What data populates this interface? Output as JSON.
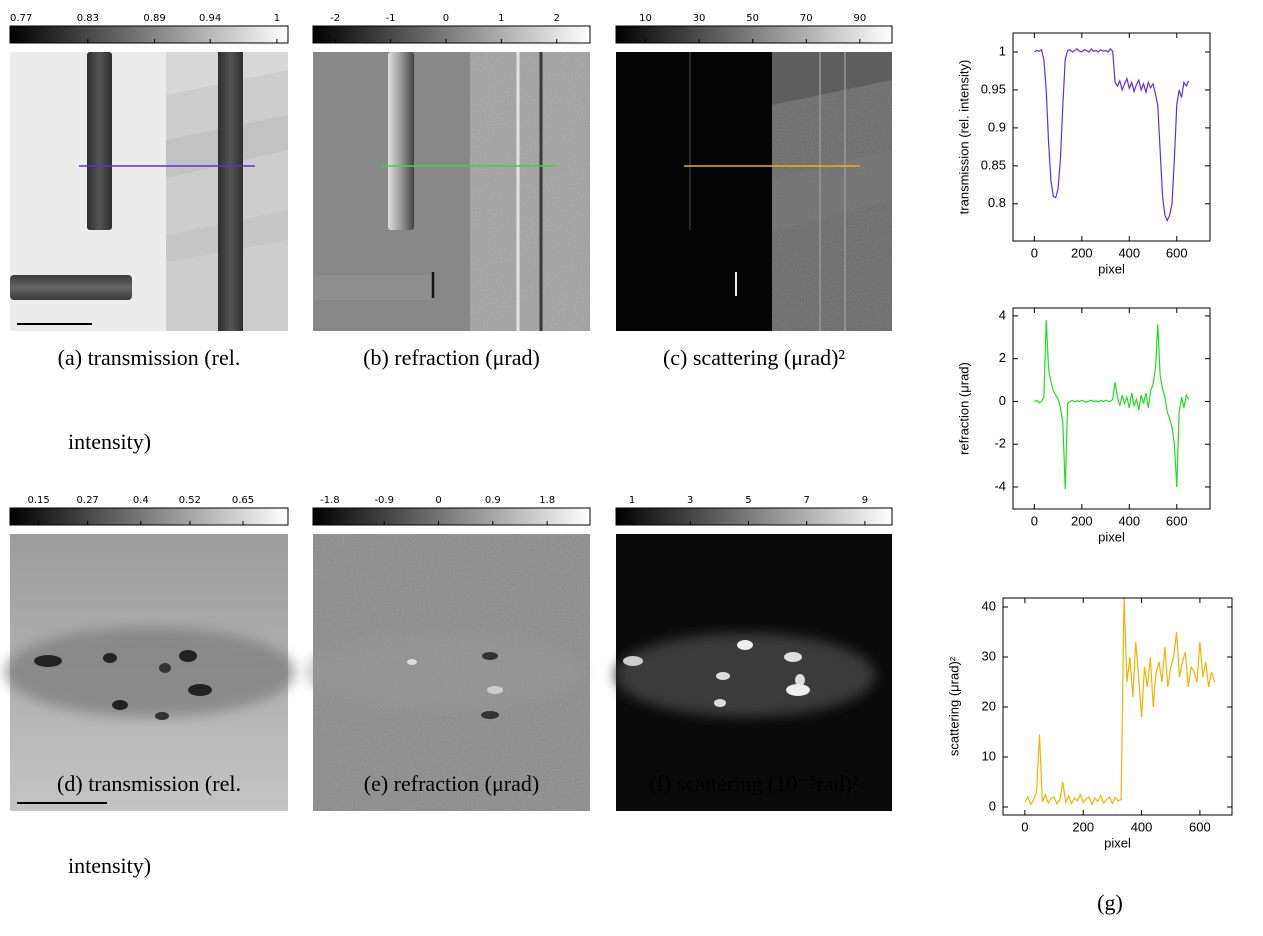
{
  "panels": [
    {
      "colorbar": {
        "lim": [
          0.76,
          1.01
        ],
        "ticks": [
          0.77,
          0.83,
          0.89,
          0.94,
          1
        ]
      },
      "caption": [
        "(a) transmission (rel.",
        "intensity)"
      ]
    },
    {
      "colorbar": {
        "lim": [
          -2.4,
          2.6
        ],
        "ticks": [
          -2,
          -1,
          0,
          1,
          2
        ]
      },
      "caption": [
        "(b) refraction (μrad)"
      ]
    },
    {
      "colorbar": {
        "lim": [
          -1,
          102
        ],
        "ticks": [
          10,
          30,
          50,
          70,
          90
        ]
      },
      "caption": [
        "(c) scattering (μrad)²"
      ]
    },
    {
      "colorbar": {
        "lim": [
          0.08,
          0.76
        ],
        "ticks": [
          0.15,
          0.27,
          0.4,
          0.52,
          0.65
        ]
      },
      "caption": [
        "(d) transmission (rel.",
        "intensity)"
      ]
    },
    {
      "colorbar": {
        "lim": [
          -2.08,
          2.51
        ],
        "ticks": [
          -1.8,
          -0.9,
          0,
          0.9,
          1.8
        ]
      },
      "caption": [
        "(e) refraction (μrad)"
      ]
    },
    {
      "colorbar": {
        "lim": [
          0.45,
          9.93
        ],
        "ticks": [
          1,
          3,
          5,
          7,
          9
        ]
      },
      "caption": [
        "(f) scattering (10⁻⁵rad)²"
      ]
    }
  ],
  "panel_g_caption": "(g)",
  "chart_data": [
    {
      "type": "line",
      "xlabel": "pixel",
      "ylabel": "transmission (rel. intensity)",
      "color": "#5f2fe6",
      "xlim": [
        -90,
        740
      ],
      "ylim": [
        0.751,
        1.025
      ],
      "xticks": [
        0,
        200,
        400,
        600
      ],
      "yticks": [
        0.8,
        0.85,
        0.9,
        0.95,
        1
      ],
      "x": [
        0,
        10,
        20,
        30,
        40,
        50,
        60,
        70,
        80,
        90,
        100,
        110,
        120,
        130,
        140,
        150,
        160,
        170,
        180,
        190,
        200,
        210,
        220,
        230,
        240,
        250,
        260,
        270,
        280,
        290,
        300,
        310,
        320,
        330,
        340,
        350,
        360,
        370,
        380,
        390,
        400,
        410,
        420,
        430,
        440,
        450,
        460,
        470,
        480,
        490,
        500,
        510,
        520,
        530,
        540,
        550,
        560,
        570,
        580,
        590,
        600,
        610,
        620,
        630,
        640,
        650
      ],
      "values": [
        1.0,
        1.002,
        1.001,
        1.003,
        0.99,
        0.95,
        0.88,
        0.83,
        0.81,
        0.808,
        0.82,
        0.86,
        0.93,
        0.99,
        1.002,
        1.003,
        1.0,
        1.002,
        1.004,
        1.001,
        1.0,
        1.003,
        1.002,
        1.0,
        1.004,
        1.001,
        1.002,
        1.0,
        1.003,
        1.001,
        1.002,
        1.0,
        1.004,
        1.001,
        0.96,
        0.955,
        0.962,
        0.95,
        0.958,
        0.965,
        0.952,
        0.96,
        0.948,
        0.957,
        0.963,
        0.95,
        0.958,
        0.947,
        0.96,
        0.953,
        0.958,
        0.945,
        0.93,
        0.87,
        0.81,
        0.785,
        0.778,
        0.785,
        0.8,
        0.86,
        0.93,
        0.95,
        0.94,
        0.96,
        0.955,
        0.962
      ]
    },
    {
      "type": "line",
      "xlabel": "pixel",
      "ylabel": "refraction (μrad)",
      "color": "#22dd22",
      "xlim": [
        -90,
        740
      ],
      "ylim": [
        -5.03,
        4.37
      ],
      "xticks": [
        0,
        200,
        400,
        600
      ],
      "yticks": [
        -4,
        -2,
        0,
        2,
        4
      ],
      "x": [
        0,
        10,
        20,
        30,
        40,
        50,
        60,
        70,
        80,
        90,
        100,
        110,
        120,
        130,
        140,
        150,
        160,
        170,
        180,
        190,
        200,
        210,
        220,
        230,
        240,
        250,
        260,
        270,
        280,
        290,
        300,
        310,
        320,
        330,
        340,
        350,
        360,
        370,
        380,
        390,
        400,
        410,
        420,
        430,
        440,
        450,
        460,
        470,
        480,
        490,
        500,
        510,
        520,
        530,
        540,
        550,
        560,
        570,
        580,
        590,
        600,
        610,
        620,
        630,
        640,
        650
      ],
      "values": [
        0,
        0.05,
        -0.05,
        0,
        0.2,
        3.8,
        1.5,
        0.9,
        0.5,
        0.3,
        0.1,
        -0.3,
        -1.0,
        -4.1,
        -0.1,
        0,
        0.05,
        -0.02,
        0.03,
        0,
        0.05,
        0,
        -0.03,
        0.02,
        0.05,
        0,
        0.03,
        -0.02,
        0.04,
        0,
        0.05,
        0.02,
        0,
        0.1,
        0.9,
        0.2,
        -0.2,
        0.3,
        -0.1,
        0.2,
        -0.3,
        0.4,
        -0.2,
        0.1,
        -0.4,
        0.3,
        -0.1,
        0.4,
        -0.3,
        0.5,
        0.8,
        1.5,
        3.6,
        1.2,
        0.6,
        0.2,
        -0.5,
        -0.8,
        -1.2,
        -2.0,
        -4.0,
        -0.5,
        0.2,
        -0.3,
        0.3,
        0.1
      ]
    },
    {
      "type": "line",
      "xlabel": "pixel",
      "ylabel": "scattering (μrad)²",
      "color": "#f0b400",
      "xlim": [
        -75,
        710
      ],
      "ylim": [
        -1.6,
        41.8
      ],
      "xticks": [
        0,
        200,
        400,
        600
      ],
      "yticks": [
        0,
        10,
        20,
        30,
        40
      ],
      "x": [
        0,
        10,
        20,
        30,
        40,
        50,
        60,
        70,
        80,
        90,
        100,
        110,
        120,
        130,
        140,
        150,
        160,
        170,
        180,
        190,
        200,
        210,
        220,
        230,
        240,
        250,
        260,
        270,
        280,
        290,
        300,
        310,
        320,
        330,
        340,
        350,
        360,
        370,
        380,
        390,
        400,
        410,
        420,
        430,
        440,
        450,
        460,
        470,
        480,
        490,
        500,
        510,
        520,
        530,
        540,
        550,
        560,
        570,
        580,
        590,
        600,
        610,
        620,
        630,
        640,
        650
      ],
      "values": [
        1,
        2,
        0.5,
        1.5,
        3,
        14.5,
        1,
        2.5,
        0.8,
        1.7,
        2,
        0.6,
        1.5,
        5,
        1,
        2.2,
        0.7,
        1.8,
        1.2,
        2.5,
        0.9,
        1.6,
        2,
        0.5,
        1.8,
        1.1,
        2.3,
        0.8,
        1.5,
        2,
        0.7,
        1.9,
        1.2,
        1.5,
        42,
        25,
        30,
        22,
        33,
        26,
        18,
        28,
        24,
        30,
        20,
        27,
        29,
        25,
        32,
        24,
        28,
        30,
        35,
        26,
        29,
        31,
        24,
        28,
        27,
        25,
        33,
        26,
        29,
        24,
        27,
        25
      ]
    }
  ]
}
